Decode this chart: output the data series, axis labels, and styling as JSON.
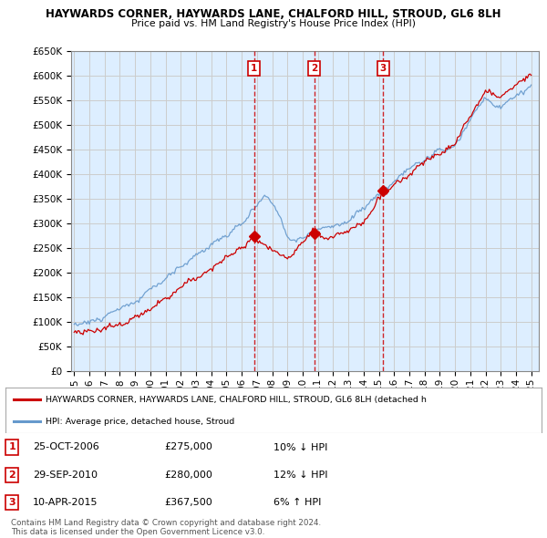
{
  "title": "HAYWARDS CORNER, HAYWARDS LANE, CHALFORD HILL, STROUD, GL6 8LH",
  "subtitle": "Price paid vs. HM Land Registry's House Price Index (HPI)",
  "ylabel_ticks": [
    "£0",
    "£50K",
    "£100K",
    "£150K",
    "£200K",
    "£250K",
    "£300K",
    "£350K",
    "£400K",
    "£450K",
    "£500K",
    "£550K",
    "£600K",
    "£650K"
  ],
  "ylim": [
    0,
    650000
  ],
  "ytick_values": [
    0,
    50000,
    100000,
    150000,
    200000,
    250000,
    300000,
    350000,
    400000,
    450000,
    500000,
    550000,
    600000,
    650000
  ],
  "xlim_start": 1994.8,
  "xlim_end": 2025.5,
  "sale_dates": [
    2006.82,
    2010.75,
    2015.27
  ],
  "sale_prices": [
    275000,
    280000,
    367500
  ],
  "sale_labels": [
    "1",
    "2",
    "3"
  ],
  "legend_label_red": "HAYWARDS CORNER, HAYWARDS LANE, CHALFORD HILL, STROUD, GL6 8LH (detached h",
  "legend_label_blue": "HPI: Average price, detached house, Stroud",
  "table_rows": [
    {
      "num": "1",
      "date": "25-OCT-2006",
      "price": "£275,000",
      "pct": "10% ↓ HPI"
    },
    {
      "num": "2",
      "date": "29-SEP-2010",
      "price": "£280,000",
      "pct": "12% ↓ HPI"
    },
    {
      "num": "3",
      "date": "10-APR-2015",
      "price": "£367,500",
      "pct": "6% ↑ HPI"
    }
  ],
  "footer_line1": "Contains HM Land Registry data © Crown copyright and database right 2024.",
  "footer_line2": "This data is licensed under the Open Government Licence v3.0.",
  "color_red": "#cc0000",
  "color_blue": "#6699cc",
  "color_grid": "#cccccc",
  "color_bg": "#ffffff",
  "color_plot_bg": "#ddeeff"
}
